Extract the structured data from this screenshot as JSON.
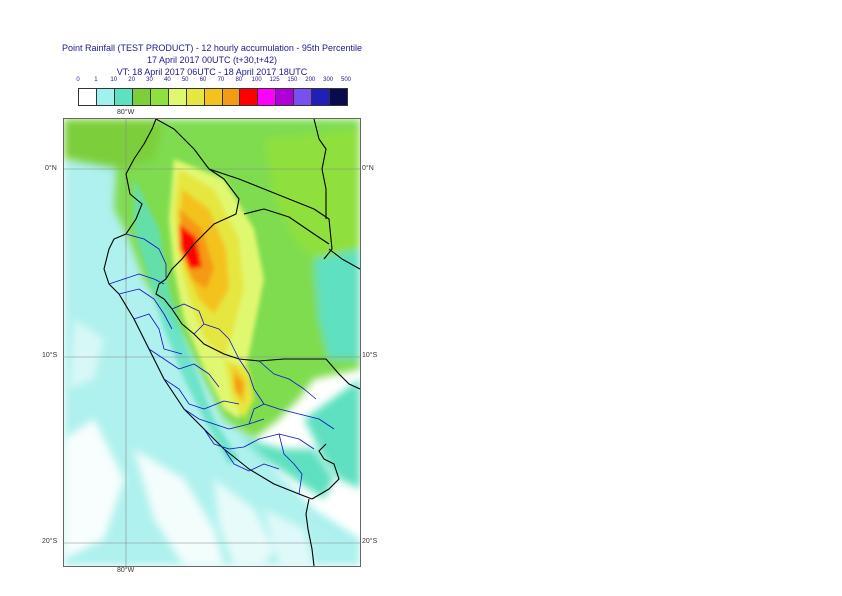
{
  "title": {
    "line1": "Point Rainfall (TEST PRODUCT) - 12 hourly accumulation - 95th Percentile",
    "line2": "17 April 2017 00UTC (t+30,t+42)",
    "line3": "VT: 18 April 2017 06UTC - 18 April 2017 18UTC"
  },
  "legend": {
    "labels": [
      "0",
      "1",
      "10",
      "20",
      "30",
      "40",
      "50",
      "60",
      "70",
      "80",
      "100",
      "125",
      "150",
      "200",
      "300",
      "500"
    ],
    "colors": [
      "#ffffff",
      "#9ff2ee",
      "#5fe0c0",
      "#7ccf3a",
      "#8fe03c",
      "#e0f870",
      "#e6e640",
      "#f4c21c",
      "#f49a14",
      "#ff0000",
      "#ff00ff",
      "#b000d8",
      "#7850f0",
      "#2020b8",
      "#0a0a50"
    ]
  },
  "axes": {
    "lon_top": "80°W",
    "lon_bottom": "80°W",
    "lat_left": [
      "0°N",
      "10°S",
      "20°S"
    ],
    "lat_right": [
      "0°N",
      "10°S",
      "20°S"
    ]
  }
}
